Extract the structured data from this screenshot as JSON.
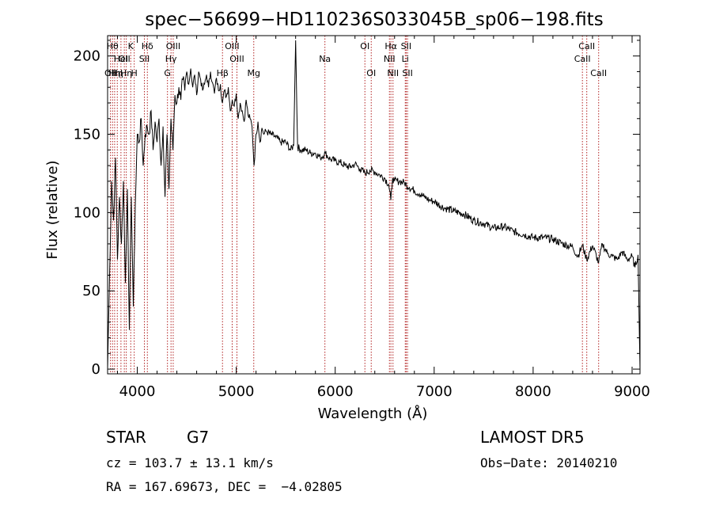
{
  "chart_data": {
    "type": "line",
    "title": "spec−56699−HD110236S033045B_sp06−198.fits",
    "xlabel": "Wavelength (Å)",
    "ylabel": "Flux (relative)",
    "xlim": [
      3700,
      9080
    ],
    "ylim": [
      -3,
      213
    ],
    "xticks": [
      4000,
      5000,
      6000,
      7000,
      8000,
      9000
    ],
    "yticks": [
      0,
      50,
      100,
      150,
      200
    ],
    "grid": false,
    "series": [
      {
        "x": [
          3700,
          3720,
          3740,
          3760,
          3780,
          3800,
          3820,
          3840,
          3860,
          3880,
          3900,
          3920,
          3940,
          3960,
          3980,
          4000,
          4020,
          4040,
          4060,
          4080,
          4100,
          4120,
          4140,
          4160,
          4180,
          4200,
          4220,
          4240,
          4260,
          4280,
          4300,
          4320,
          4340,
          4360,
          4380,
          4400,
          4420,
          4440,
          4460,
          4480,
          4500,
          4520,
          4540,
          4560,
          4580,
          4600,
          4620,
          4640,
          4660,
          4680,
          4700,
          4720,
          4740,
          4760,
          4780,
          4800,
          4820,
          4840,
          4860,
          4880,
          4900,
          4920,
          4940,
          4960,
          4980,
          5000,
          5020,
          5040,
          5060,
          5080,
          5100,
          5120,
          5140,
          5160,
          5180,
          5200,
          5220,
          5240,
          5260,
          5280,
          5300,
          5350,
          5400,
          5450,
          5500,
          5550,
          5580,
          5600,
          5620,
          5650,
          5700,
          5750,
          5800,
          5850,
          5900,
          5950,
          6000,
          6050,
          6100,
          6150,
          6200,
          6250,
          6300,
          6350,
          6400,
          6450,
          6500,
          6540,
          6562,
          6580,
          6600,
          6650,
          6700,
          6750,
          6800,
          6850,
          6900,
          6950,
          7000,
          7100,
          7200,
          7300,
          7400,
          7500,
          7600,
          7700,
          7800,
          7900,
          8000,
          8100,
          8200,
          8300,
          8400,
          8450,
          8498,
          8542,
          8600,
          8662,
          8700,
          8750,
          8800,
          8850,
          8900,
          8950,
          9000,
          9030,
          9060,
          9080
        ],
        "y": [
          0,
          60,
          120,
          95,
          135,
          70,
          110,
          80,
          120,
          55,
          115,
          25,
          110,
          40,
          105,
          150,
          145,
          160,
          130,
          150,
          155,
          150,
          165,
          140,
          158,
          145,
          160,
          130,
          155,
          110,
          150,
          115,
          160,
          140,
          175,
          170,
          180,
          172,
          185,
          178,
          190,
          182,
          192,
          180,
          188,
          175,
          190,
          185,
          178,
          182,
          188,
          180,
          190,
          183,
          176,
          186,
          178,
          182,
          170,
          178,
          174,
          180,
          165,
          172,
          168,
          176,
          160,
          170,
          165,
          158,
          172,
          162,
          160,
          155,
          130,
          150,
          158,
          145,
          154,
          150,
          152,
          150,
          148,
          145,
          145,
          140,
          143,
          210,
          142,
          140,
          140,
          138,
          138,
          135,
          138,
          134,
          133,
          132,
          130,
          129,
          131,
          128,
          125,
          127,
          126,
          124,
          122,
          118,
          108,
          122,
          120,
          120,
          119,
          116,
          114,
          112,
          110,
          108,
          107,
          103,
          101,
          99,
          95,
          93,
          90,
          91,
          88,
          86,
          84,
          84,
          83,
          80,
          78,
          72,
          79,
          70,
          79,
          68,
          80,
          74,
          72,
          70,
          75,
          70,
          72,
          65,
          73,
          0
        ]
      }
    ],
    "lines": [
      {
        "x": 3729,
        "label": "OII",
        "row": 3
      },
      {
        "x": 3750,
        "label": "Hθ",
        "row": 1
      },
      {
        "x": 3771,
        "label": "Hη",
        "row": 3
      },
      {
        "x": 3798,
        "label": "Hη",
        "row": 3
      },
      {
        "x": 3835,
        "label": "HeI",
        "row": 2
      },
      {
        "x": 3869,
        "label": "OII",
        "row": 2
      },
      {
        "x": 3889,
        "label": "Hη",
        "row": 3
      },
      {
        "x": 3934,
        "label": "K",
        "row": 1
      },
      {
        "x": 3969,
        "label": "H",
        "row": 3
      },
      {
        "x": 4072,
        "label": "SII",
        "row": 2
      },
      {
        "x": 4102,
        "label": "Hδ",
        "row": 1
      },
      {
        "x": 4305,
        "label": "G",
        "row": 3
      },
      {
        "x": 4341,
        "label": "Hγ",
        "row": 2
      },
      {
        "x": 4363,
        "label": "OIII",
        "row": 1
      },
      {
        "x": 4861,
        "label": "Hβ",
        "row": 3
      },
      {
        "x": 4959,
        "label": "OIII",
        "row": 1
      },
      {
        "x": 5007,
        "label": "OIII",
        "row": 2
      },
      {
        "x": 5177,
        "label": "Mg",
        "row": 3
      },
      {
        "x": 5896,
        "label": "Na",
        "row": 2
      },
      {
        "x": 6300,
        "label": "OI",
        "row": 1
      },
      {
        "x": 6364,
        "label": "OI",
        "row": 3
      },
      {
        "x": 6548,
        "label": "NII",
        "row": 2
      },
      {
        "x": 6563,
        "label": "Hα",
        "row": 1
      },
      {
        "x": 6584,
        "label": "NII",
        "row": 3
      },
      {
        "x": 6708,
        "label": "Li",
        "row": 2
      },
      {
        "x": 6717,
        "label": "SII",
        "row": 1
      },
      {
        "x": 6731,
        "label": "SII",
        "row": 3
      },
      {
        "x": 8498,
        "label": "CaII",
        "row": 2
      },
      {
        "x": 8542,
        "label": "CaII",
        "row": 1
      },
      {
        "x": 8662,
        "label": "CaII",
        "row": 3
      }
    ]
  },
  "info": {
    "object_class": "STAR",
    "subclass": "G7",
    "survey": "LAMOST DR5",
    "redshift": "cz = 103.7 ± 13.1 km/s",
    "obs_date": "Obs−Date: 20140210",
    "coords": "RA = 167.69673, DEC =  −4.02805"
  },
  "colors": {
    "line_marker": "#b22222",
    "spectrum": "#000000"
  }
}
